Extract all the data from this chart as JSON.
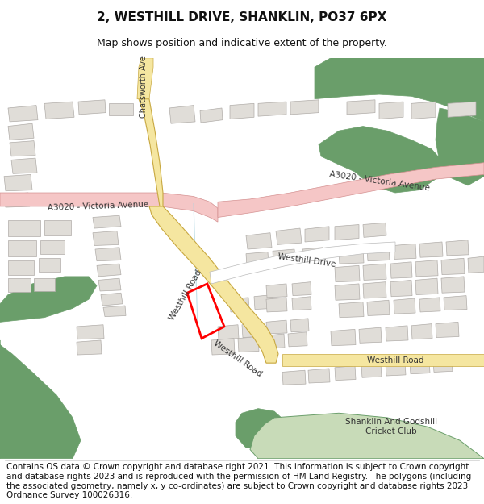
{
  "title": "2, WESTHILL DRIVE, SHANKLIN, PO37 6PX",
  "subtitle": "Map shows position and indicative extent of the property.",
  "footer": "Contains OS data © Crown copyright and database right 2021. This information is subject to Crown copyright and database rights 2023 and is reproduced with the permission of HM Land Registry. The polygons (including the associated geometry, namely x, y co-ordinates) are subject to Crown copyright and database rights 2023 Ordnance Survey 100026316.",
  "bg_color": "#ffffff",
  "map_bg": "#f2f0eb",
  "road_main_color": "#f5c6c6",
  "road_main_edge": "#d49090",
  "road_yellow_color": "#f5e6a0",
  "road_yellow_edge": "#c8a840",
  "road_white_color": "#ffffff",
  "road_white_edge": "#bbbbbb",
  "green_dark": "#6a9e6a",
  "green_light": "#c8dbb8",
  "building_color": "#e0ddd8",
  "building_edge": "#b0aca8",
  "plot_color": "#ff0000",
  "label_color": "#333333",
  "water_color": "#a8d4e8",
  "title_fontsize": 11,
  "subtitle_fontsize": 9,
  "footer_fontsize": 7.5
}
